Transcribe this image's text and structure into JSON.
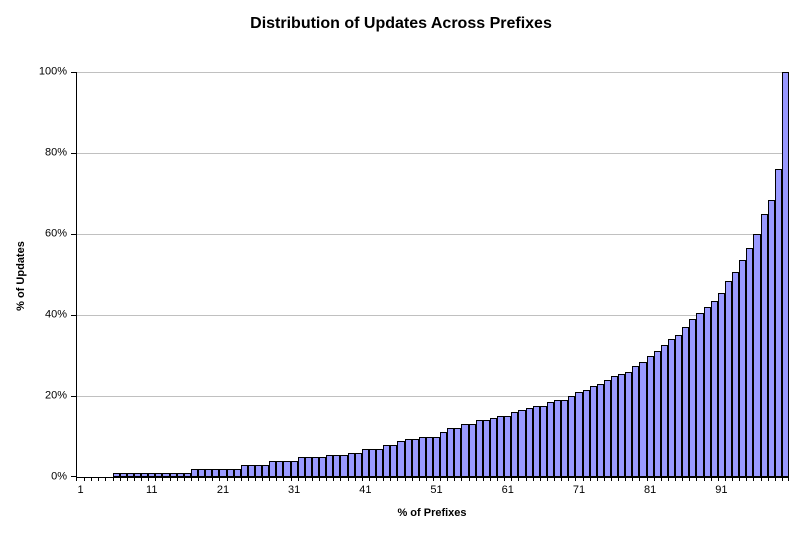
{
  "colors": {
    "bar_fill": "#9999FF",
    "bar_border": "#000000",
    "gridline": "#C0C0C0",
    "axis": "#000000",
    "background": "#FFFFFF",
    "text": "#000000"
  },
  "chart_data": {
    "type": "bar",
    "title": "Distribution of Updates Across Prefixes",
    "xlabel": "% of Prefixes",
    "ylabel": "% of Updates",
    "x_start": 1,
    "values": [
      0,
      0,
      0,
      0,
      0,
      1,
      1,
      1,
      1,
      1,
      1,
      1,
      1,
      1,
      1,
      1,
      2,
      2,
      2,
      2,
      2,
      2,
      2,
      3,
      3,
      3,
      3,
      4,
      4,
      4,
      4,
      5,
      5,
      5,
      5,
      5.5,
      5.5,
      5.5,
      6,
      6,
      7,
      7,
      7,
      8,
      8,
      9,
      9.5,
      9.5,
      10,
      10,
      10,
      11,
      12,
      12,
      13,
      13,
      14,
      14,
      14.5,
      15,
      15,
      16,
      16.5,
      17,
      17.5,
      17.5,
      18.5,
      19,
      19,
      20,
      21,
      21.5,
      22.5,
      23,
      24,
      25,
      25.5,
      26,
      27.5,
      28.5,
      30,
      31,
      32.5,
      34,
      35,
      37,
      39,
      40.5,
      42,
      43.5,
      45.5,
      48.5,
      50.5,
      53.5,
      56.5,
      60,
      65,
      68.5,
      76,
      100
    ],
    "xlim": [
      1,
      100
    ],
    "ylim": [
      0,
      100
    ],
    "x_ticks": [
      1,
      11,
      21,
      31,
      41,
      51,
      61,
      71,
      81,
      91
    ],
    "x_tick_labels": [
      "1",
      "11",
      "21",
      "31",
      "41",
      "51",
      "61",
      "71",
      "81",
      "91"
    ],
    "y_ticks": [
      0,
      20,
      40,
      60,
      80,
      100
    ],
    "y_tick_labels": [
      "0%",
      "20%",
      "40%",
      "60%",
      "80%",
      "100%"
    ],
    "y_tick_step": 20,
    "grid": "horizontal-major",
    "legend": "none",
    "bar_gap": 0
  }
}
